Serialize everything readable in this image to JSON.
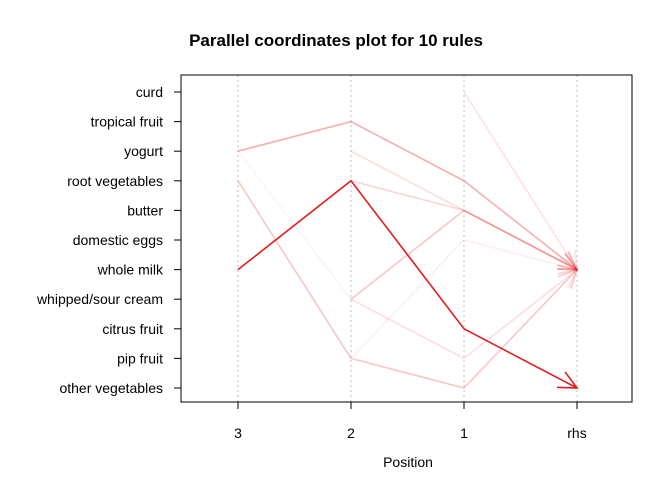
{
  "chart_data": {
    "type": "parallel_coordinates",
    "title": "Parallel coordinates plot for 10 rules",
    "xlabel": "Position",
    "positions": [
      "3",
      "2",
      "1",
      "rhs"
    ],
    "items": [
      "curd",
      "tropical fruit",
      "yogurt",
      "root vegetables",
      "butter",
      "domestic eggs",
      "whole milk",
      "whipped/sour cream",
      "citrus fruit",
      "pip fruit",
      "other vegetables"
    ],
    "rules": [
      {
        "path": [
          null,
          null,
          "curd",
          "whole milk"
        ],
        "strength": 0.12
      },
      {
        "path": [
          "yogurt",
          "tropical fruit",
          "root vegetables",
          "whole milk"
        ],
        "strength": 0.35
      },
      {
        "path": [
          null,
          "yogurt",
          "butter",
          "whole milk"
        ],
        "strength": 0.15
      },
      {
        "path": [
          null,
          "root vegetables",
          "butter",
          "whole milk"
        ],
        "strength": 0.18
      },
      {
        "path": [
          null,
          "whipped/sour cream",
          "butter",
          "whole milk"
        ],
        "strength": 0.2
      },
      {
        "path": [
          null,
          "pip fruit",
          "domestic eggs",
          "whole milk"
        ],
        "strength": 0.07
      },
      {
        "path": [
          "root vegetables",
          "pip fruit",
          "other vegetables",
          "whole milk"
        ],
        "strength": 0.25
      },
      {
        "path": [
          null,
          "whipped/sour cream",
          "pip fruit",
          "whole milk"
        ],
        "strength": 0.14
      },
      {
        "path": [
          "yogurt",
          "whipped/sour cream",
          "butter",
          "whole milk"
        ],
        "strength": 0.05
      },
      {
        "path": [
          "whole milk",
          "root vegetables",
          "citrus fruit",
          "other vegetables"
        ],
        "strength": 1.0
      }
    ],
    "colors": {
      "rule": "#e41a1c",
      "grid": "#bebebe",
      "axis": "#000000"
    }
  }
}
